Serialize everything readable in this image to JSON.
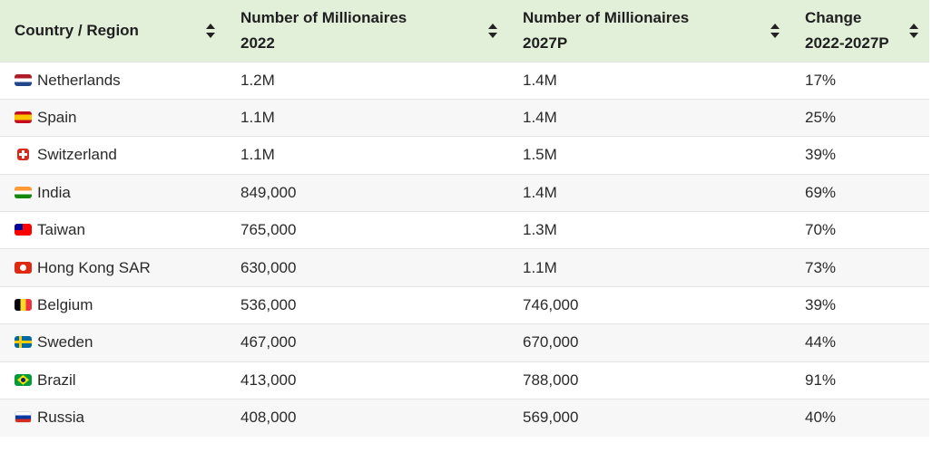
{
  "table": {
    "headers": [
      {
        "line1": "Country / Region",
        "line2": ""
      },
      {
        "line1": "Number of Millionaires",
        "line2": "2022"
      },
      {
        "line1": "Number of Millionaires",
        "line2": "2027P"
      },
      {
        "line1": "Change",
        "line2": "2022-2027P"
      }
    ],
    "rows": [
      {
        "flag": "netherlands-flag-icon",
        "country": "Netherlands",
        "m2022": "1.2M",
        "m2027": "1.4M",
        "change": "17%"
      },
      {
        "flag": "spain-flag-icon",
        "country": "Spain",
        "m2022": "1.1M",
        "m2027": "1.4M",
        "change": "25%"
      },
      {
        "flag": "switzerland-flag-icon",
        "country": "Switzerland",
        "m2022": "1.1M",
        "m2027": "1.5M",
        "change": "39%"
      },
      {
        "flag": "india-flag-icon",
        "country": "India",
        "m2022": "849,000",
        "m2027": "1.4M",
        "change": "69%"
      },
      {
        "flag": "taiwan-flag-icon",
        "country": "Taiwan",
        "m2022": "765,000",
        "m2027": "1.3M",
        "change": "70%"
      },
      {
        "flag": "hong-kong-flag-icon",
        "country": "Hong Kong SAR",
        "m2022": "630,000",
        "m2027": "1.1M",
        "change": "73%"
      },
      {
        "flag": "belgium-flag-icon",
        "country": "Belgium",
        "m2022": "536,000",
        "m2027": "746,000",
        "change": "39%"
      },
      {
        "flag": "sweden-flag-icon",
        "country": "Sweden",
        "m2022": "467,000",
        "m2027": "670,000",
        "change": "44%"
      },
      {
        "flag": "brazil-flag-icon",
        "country": "Brazil",
        "m2022": "413,000",
        "m2027": "788,000",
        "change": "91%"
      },
      {
        "flag": "russia-flag-icon",
        "country": "Russia",
        "m2022": "408,000",
        "m2027": "569,000",
        "change": "40%"
      }
    ]
  },
  "colors": {
    "header_bg": "#e2efd9",
    "stripe_bg": "#f7f7f7"
  }
}
